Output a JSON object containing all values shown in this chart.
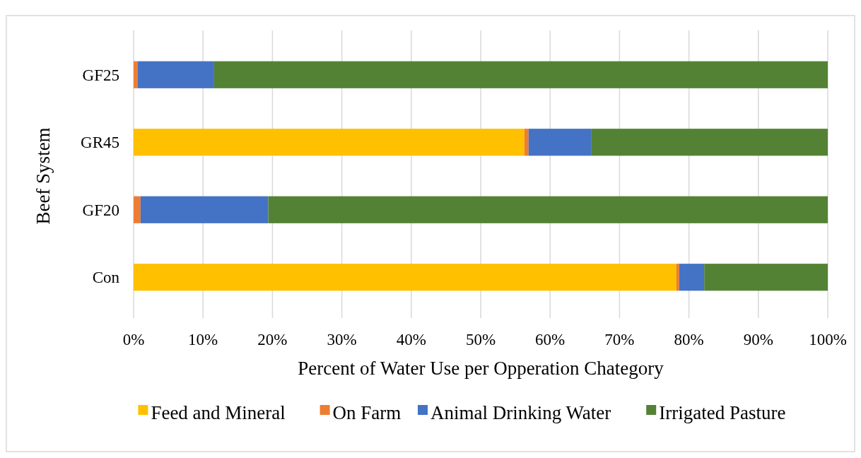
{
  "chart_data": {
    "type": "bar",
    "orientation": "horizontal",
    "stacked": true,
    "xlabel": "Percent of Water Use per Opperation Chategory",
    "ylabel": "Beef System",
    "categories": [
      "GF25",
      "GR45",
      "GF20",
      "Con"
    ],
    "series": [
      {
        "name": "Feed and Mineral",
        "color": "#ffc000",
        "values": [
          0,
          56.3,
          0,
          78.2
        ]
      },
      {
        "name": "On Farm",
        "color": "#ed7d31",
        "values": [
          0.6,
          0.6,
          1.0,
          0.4
        ]
      },
      {
        "name": "Animal Drinking Water",
        "color": "#4472c4",
        "values": [
          11.0,
          9.0,
          18.4,
          3.6
        ]
      },
      {
        "name": "Irrigated Pasture",
        "color": "#548235",
        "values": [
          88.4,
          34.1,
          80.6,
          17.8
        ]
      }
    ],
    "xlim": [
      0,
      100
    ],
    "xticks": [
      {
        "value": 0,
        "label": "0%"
      },
      {
        "value": 10,
        "label": "10%"
      },
      {
        "value": 20,
        "label": "20%"
      },
      {
        "value": 30,
        "label": "30%"
      },
      {
        "value": 40,
        "label": "40%"
      },
      {
        "value": 50,
        "label": "50%"
      },
      {
        "value": 60,
        "label": "60%"
      },
      {
        "value": 70,
        "label": "70%"
      },
      {
        "value": 80,
        "label": "80%"
      },
      {
        "value": 90,
        "label": "90%"
      },
      {
        "value": 100,
        "label": "100%"
      }
    ],
    "grid": "x",
    "legend": "bottom"
  }
}
